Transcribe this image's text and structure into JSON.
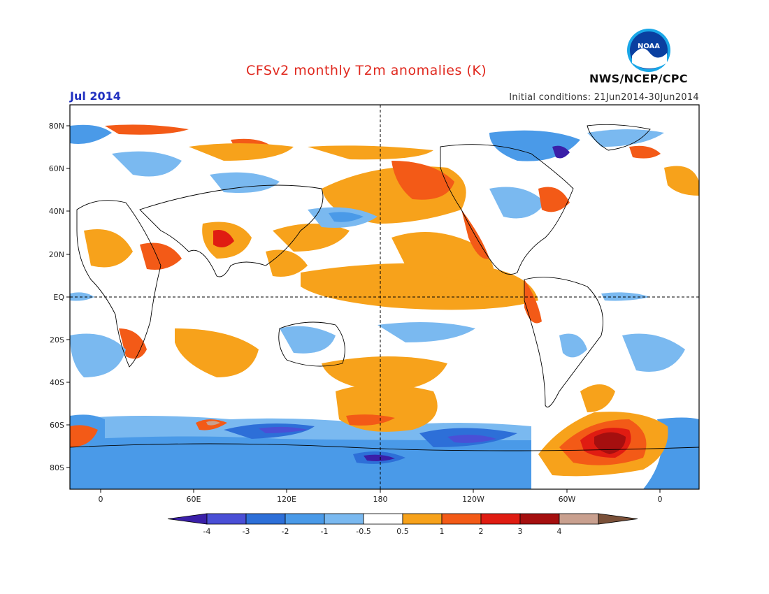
{
  "title": "CFSv2 monthly T2m anomalies (K)",
  "valid_month": "Jul 2014",
  "initial_conditions": "Initial conditions: 21Jun2014-30Jun2014",
  "organization": "NWS/NCEP/CPC",
  "logo_text": "NOAA",
  "map": {
    "lat_labels": [
      "80N",
      "60N",
      "40N",
      "20N",
      "EQ",
      "20S",
      "40S",
      "60S",
      "80S"
    ],
    "lon_labels": [
      "0",
      "60E",
      "120E",
      "180",
      "120W",
      "60W",
      "0"
    ]
  },
  "colorbar": {
    "ticks": [
      "-4",
      "-3",
      "-2",
      "-1",
      "-0.5",
      "0.5",
      "1",
      "2",
      "3",
      "4"
    ],
    "colors": [
      "#3a1fa8",
      "#4a4fd6",
      "#2d6fd8",
      "#4a9ae8",
      "#7ab9f0",
      "#ffffff",
      "#f7a21b",
      "#f35a17",
      "#e01c12",
      "#a50f0f",
      "#c9a08f",
      "#7a5038"
    ]
  },
  "colors": {
    "title": "#e0281e",
    "valid": "#2030c0"
  }
}
